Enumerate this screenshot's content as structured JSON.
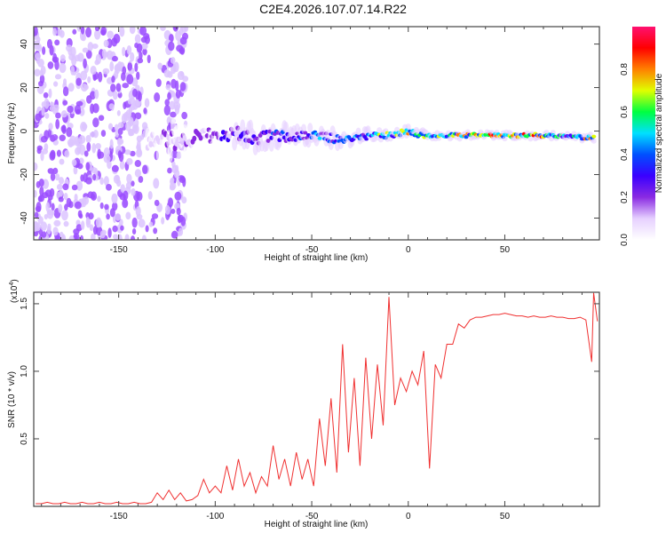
{
  "chart_data": [
    {
      "type": "heatmap",
      "title": "C2E4.2026.107.07.14.R22",
      "xlabel": "Height of straight line (km)",
      "ylabel": "Frequency (Hz)",
      "xlim": [
        -194,
        99
      ],
      "ylim": [
        -50,
        48
      ],
      "xticks": [
        -150,
        -100,
        -50,
        0,
        50
      ],
      "xtick_labels": [
        "-150",
        "-100",
        "-50",
        "0",
        "50"
      ],
      "yticks": [
        -40,
        -20,
        0,
        20,
        40
      ],
      "ytick_labels": [
        "-40",
        "-20",
        "0",
        "20",
        "40"
      ],
      "colorbar": {
        "label": "Normalized spectral amplitude",
        "range": [
          0,
          1
        ],
        "ticks": [
          0.0,
          0.2,
          0.4,
          0.6,
          0.8
        ],
        "tick_labels": [
          "0.0",
          "0.2",
          "0.4",
          "0.6",
          "0.8"
        ],
        "colormap": [
          "#ffffff",
          "#e6d0ff",
          "#8a2be2",
          "#3a00ff",
          "#0050ff",
          "#00e0ff",
          "#00ff40",
          "#e0ff00",
          "#ff8000",
          "#ff0000",
          "#ff1070"
        ]
      },
      "noise_region_x": [
        -194,
        -115
      ],
      "ridge": {
        "x": [
          -135,
          -130,
          -125,
          -120,
          -115,
          -110,
          -105,
          -100,
          -95,
          -90,
          -85,
          -80,
          -75,
          -70,
          -65,
          -60,
          -55,
          -50,
          -45,
          -40,
          -35,
          -30,
          -25,
          -20,
          -15,
          -10,
          -5,
          0,
          5,
          10,
          15,
          20,
          25,
          30,
          40,
          50,
          60,
          70,
          80,
          90,
          97
        ],
        "freq": [
          -4,
          -5,
          -3,
          -5,
          -4,
          -3,
          -2,
          -2,
          -3,
          -1,
          -2,
          -4,
          -3,
          -2,
          -2,
          -3,
          -2,
          -2,
          -3,
          -3,
          -4,
          -3,
          -3,
          -2,
          -2,
          -2,
          -1,
          0,
          -2,
          -2,
          -2,
          -2,
          -2,
          -2,
          -2,
          -2,
          -2,
          -2,
          -2,
          -3,
          -3
        ],
        "amplitude": [
          0.15,
          0.18,
          0.2,
          0.2,
          0.22,
          0.25,
          0.28,
          0.3,
          0.33,
          0.35,
          0.35,
          0.38,
          0.4,
          0.42,
          0.45,
          0.45,
          0.48,
          0.5,
          0.5,
          0.55,
          0.55,
          0.6,
          0.62,
          0.65,
          0.75,
          0.85,
          0.8,
          0.9,
          0.75,
          0.85,
          0.85,
          0.8,
          0.9,
          0.95,
          0.95,
          0.95,
          0.95,
          0.9,
          0.7,
          0.85,
          0.85
        ],
        "spread_hz": [
          9,
          9,
          9,
          8,
          8,
          8,
          7,
          7,
          7,
          7,
          7,
          6,
          6,
          6,
          6,
          5,
          5,
          5,
          5,
          5,
          4,
          4,
          4,
          3,
          3,
          3,
          3,
          3,
          3,
          2,
          2,
          2,
          2,
          2,
          2,
          2,
          2,
          2,
          2,
          2,
          2
        ]
      }
    },
    {
      "type": "line",
      "xlabel": "Height of straight line (km)",
      "ylabel": "SNR (10 * v/v)",
      "y_multiplier": "(x10",
      "y_multiplier_exp": "4",
      "y_multiplier_close": ")",
      "xlim": [
        -194,
        99
      ],
      "ylim": [
        0,
        1.585
      ],
      "xticks": [
        -150,
        -100,
        -50,
        0,
        50
      ],
      "xtick_labels": [
        "-150",
        "-100",
        "-50",
        "0",
        "50"
      ],
      "yticks": [
        0.5,
        1.0,
        1.5
      ],
      "ytick_labels": [
        "0.5",
        "1.0",
        "1.5"
      ],
      "color": "#f03030",
      "x": [
        -193,
        -190,
        -187,
        -184,
        -181,
        -178,
        -175,
        -172,
        -169,
        -166,
        -163,
        -160,
        -157,
        -154,
        -151,
        -148,
        -145,
        -142,
        -139,
        -136,
        -133,
        -130,
        -127,
        -124,
        -121,
        -118,
        -115,
        -112,
        -109,
        -106,
        -103,
        -100,
        -97,
        -94,
        -91,
        -88,
        -85,
        -82,
        -79,
        -76,
        -73,
        -70,
        -67,
        -64,
        -61,
        -58,
        -55,
        -52,
        -49,
        -46,
        -43,
        -40,
        -37,
        -34,
        -31,
        -28,
        -25,
        -22,
        -19,
        -16,
        -13,
        -10,
        -7,
        -4,
        -1,
        2,
        5,
        8,
        11,
        14,
        17,
        20,
        23,
        26,
        29,
        32,
        35,
        38,
        41,
        44,
        47,
        50,
        53,
        56,
        59,
        62,
        65,
        68,
        71,
        74,
        77,
        80,
        83,
        86,
        89,
        92,
        95,
        96,
        98
      ],
      "y": [
        0.02,
        0.02,
        0.03,
        0.02,
        0.02,
        0.03,
        0.02,
        0.02,
        0.03,
        0.02,
        0.02,
        0.03,
        0.02,
        0.02,
        0.03,
        0.02,
        0.02,
        0.03,
        0.02,
        0.02,
        0.03,
        0.1,
        0.05,
        0.12,
        0.05,
        0.1,
        0.04,
        0.05,
        0.08,
        0.2,
        0.1,
        0.15,
        0.1,
        0.3,
        0.12,
        0.35,
        0.15,
        0.25,
        0.1,
        0.22,
        0.15,
        0.45,
        0.2,
        0.35,
        0.15,
        0.4,
        0.2,
        0.35,
        0.15,
        0.65,
        0.3,
        0.8,
        0.25,
        1.2,
        0.4,
        0.95,
        0.3,
        1.1,
        0.5,
        1.05,
        0.6,
        1.55,
        0.75,
        0.95,
        0.85,
        1.0,
        0.9,
        1.15,
        0.28,
        1.05,
        0.95,
        1.2,
        1.2,
        1.35,
        1.32,
        1.38,
        1.4,
        1.4,
        1.41,
        1.42,
        1.42,
        1.43,
        1.42,
        1.41,
        1.41,
        1.4,
        1.41,
        1.4,
        1.4,
        1.41,
        1.4,
        1.4,
        1.39,
        1.39,
        1.4,
        1.38,
        1.07,
        1.58,
        1.37
      ]
    }
  ]
}
